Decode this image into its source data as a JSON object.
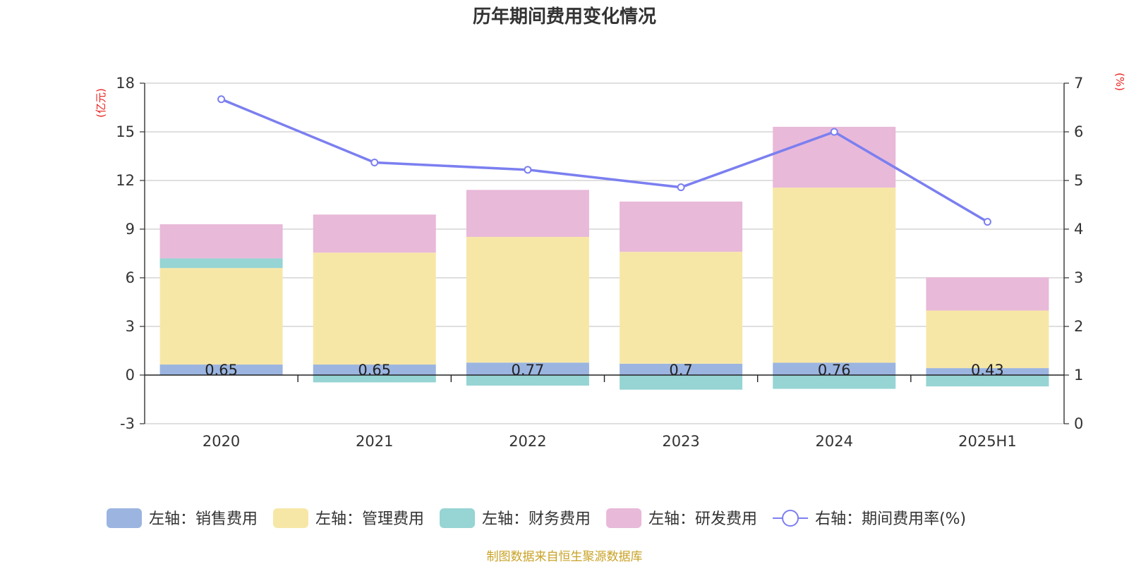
{
  "chart_data": {
    "type": "bar",
    "stacked": true,
    "title": "历年期间费用变化情况",
    "categories": [
      "2020",
      "2021",
      "2022",
      "2023",
      "2024",
      "2025H1"
    ],
    "left_axis": {
      "unit": "(亿元)",
      "ticks": [
        18,
        15,
        12,
        9,
        6,
        3,
        0,
        -3
      ],
      "ylim": [
        -3,
        18
      ]
    },
    "right_axis": {
      "unit": "(%)",
      "ticks": [
        7,
        6,
        5,
        4,
        3,
        2,
        1,
        0
      ],
      "ylim": [
        0,
        7
      ]
    },
    "series": [
      {
        "name": "左轴：销售费用",
        "type": "bar",
        "axis": "left",
        "color": "#9bb5e0",
        "values": [
          0.65,
          0.65,
          0.77,
          0.7,
          0.76,
          0.43
        ],
        "labels": [
          "0.65",
          "0.65",
          "0.77",
          "0.7",
          "0.76",
          "0.43"
        ]
      },
      {
        "name": "左轴：管理费用",
        "type": "bar",
        "axis": "left",
        "color": "#f7e7a7",
        "values": [
          5.95,
          6.9,
          7.75,
          6.9,
          10.8,
          3.55
        ]
      },
      {
        "name": "左轴：财务费用",
        "type": "bar",
        "axis": "left",
        "color": "#97d4d4",
        "values": [
          0.6,
          -0.45,
          -0.65,
          -0.9,
          -0.85,
          -0.7
        ]
      },
      {
        "name": "左轴：研发费用",
        "type": "bar",
        "axis": "left",
        "color": "#e8b9d9",
        "values": [
          2.1,
          2.35,
          2.9,
          3.1,
          3.75,
          2.05
        ]
      },
      {
        "name": "右轴：期间费用率(%)",
        "type": "line",
        "axis": "right",
        "color": "#7b7ff0",
        "values": [
          6.67,
          5.37,
          5.22,
          4.86,
          6.0,
          4.15
        ]
      }
    ],
    "grid": true,
    "legend_position": "bottom"
  },
  "source_note": "制图数据来自恒生聚源数据库",
  "colors": {
    "axis_unit": "#e8211d",
    "source": "#c9a227",
    "gridline": "#cccccc"
  }
}
